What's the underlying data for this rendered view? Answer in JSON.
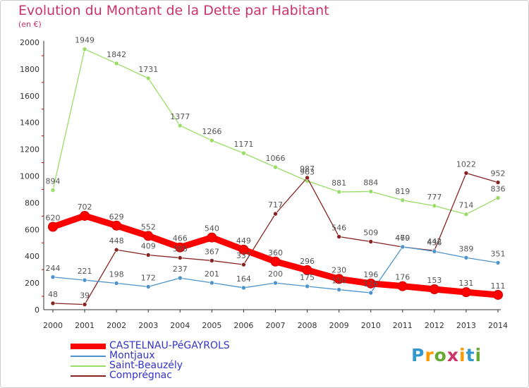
{
  "title": "Evolution du Montant de la Dette par Habitant",
  "subtitle": "(en €)",
  "logo": {
    "letters": [
      "P",
      "r",
      "o",
      "x",
      "i",
      "t",
      "i"
    ],
    "colors": [
      "#3399cc",
      "#ff9900",
      "#66aa33",
      "#cc3366",
      "#ff9900",
      "#3399cc",
      "#66aa33"
    ]
  },
  "chart_data": {
    "type": "line",
    "x": [
      "2000",
      "2001",
      "2002",
      "2003",
      "2004",
      "2005",
      "2006",
      "2007",
      "2008",
      "2009",
      "2010",
      "2011",
      "2012",
      "2013",
      "2014"
    ],
    "ylim": [
      0,
      2000
    ],
    "yticks": [
      "0",
      "200",
      "400",
      "600",
      "800",
      "1000",
      "1200",
      "1400",
      "1600",
      "1800",
      "2000"
    ],
    "grid": false,
    "legend": "bottom-left",
    "series": [
      {
        "name": "CASTELNAU-PéGAYROLS",
        "color": "#ff0000",
        "emphasis": true,
        "values": [
          620,
          702,
          629,
          552,
          466,
          540,
          449,
          360,
          296,
          230,
          196,
          176,
          153,
          131,
          111
        ],
        "labels": [
          "620",
          "702",
          "629",
          "552",
          "466",
          "540",
          "449",
          "360",
          "296",
          "230",
          "196",
          "176",
          "153",
          "131",
          "111"
        ]
      },
      {
        "name": "Montjaux",
        "color": "#4d94cc",
        "emphasis": false,
        "values": [
          244,
          221,
          198,
          172,
          237,
          201,
          164,
          200,
          175,
          150,
          126,
          470,
          436,
          389,
          351
        ],
        "labels": [
          "244",
          "221",
          "198",
          "172",
          "237",
          "201",
          "164",
          "200",
          "175",
          "150",
          "126",
          "470",
          "436",
          "389",
          "351"
        ]
      },
      {
        "name": "Saint-Beauzély",
        "color": "#99dd66",
        "emphasis": false,
        "values": [
          894,
          1949,
          1842,
          1731,
          1377,
          1266,
          1171,
          1066,
          963,
          881,
          884,
          819,
          777,
          714,
          836
        ],
        "labels": [
          "894",
          "1949",
          "1842",
          "1731",
          "1377",
          "1266",
          "1171",
          "1066",
          "963",
          "881",
          "884",
          "819",
          "777",
          "714",
          "836"
        ]
      },
      {
        "name": "Comprégnac",
        "color": "#882222",
        "emphasis": false,
        "values": [
          48,
          39,
          448,
          409,
          388,
          367,
          337,
          717,
          987,
          546,
          509,
          469,
          442,
          1022,
          952
        ],
        "labels": [
          "48",
          "39",
          "448",
          "409",
          "388",
          "367",
          "337",
          "717",
          "987",
          "546",
          "509",
          "469",
          "442",
          "1022",
          "952"
        ]
      }
    ]
  }
}
